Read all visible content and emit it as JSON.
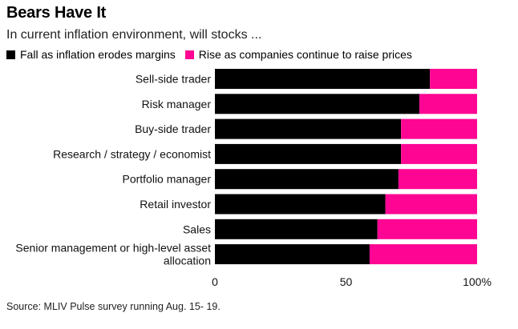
{
  "header": {
    "title": "Bears Have It",
    "subtitle": "In current inflation environment, will stocks ..."
  },
  "colors": {
    "fall": "#000000",
    "rise": "#ff0593"
  },
  "chart_data": {
    "type": "bar",
    "orientation": "horizontal",
    "stacked": true,
    "title": "Bears Have It",
    "subtitle": "In current inflation environment, will stocks ...",
    "categories": [
      "Sell-side trader",
      "Risk manager",
      "Buy-side trader",
      "Research / strategy / economist",
      "Portfolio manager",
      "Retail investor",
      "Sales",
      "Senior management or high-level asset allocation"
    ],
    "category_lines": [
      [
        "Sell-side trader"
      ],
      [
        "Risk manager"
      ],
      [
        "Buy-side trader"
      ],
      [
        "Research / strategy / economist"
      ],
      [
        "Portfolio manager"
      ],
      [
        "Retail investor"
      ],
      [
        "Sales"
      ],
      [
        "Senior management or high-level asset",
        "allocation"
      ]
    ],
    "series": [
      {
        "name": "Fall as inflation erodes margins",
        "values": [
          82,
          78,
          71,
          71,
          70,
          65,
          62,
          59
        ]
      },
      {
        "name": "Rise as companies continue to raise prices",
        "values": [
          18,
          22,
          29,
          29,
          30,
          35,
          38,
          41
        ]
      }
    ],
    "xlim": [
      0,
      100
    ],
    "xticks": [
      0,
      50,
      100
    ],
    "xtick_labels": [
      "0",
      "50",
      "100%"
    ],
    "legend": "top-left",
    "grid": false
  },
  "footer": {
    "source": "Source: MLIV Pulse survey running Aug. 15- 19."
  }
}
